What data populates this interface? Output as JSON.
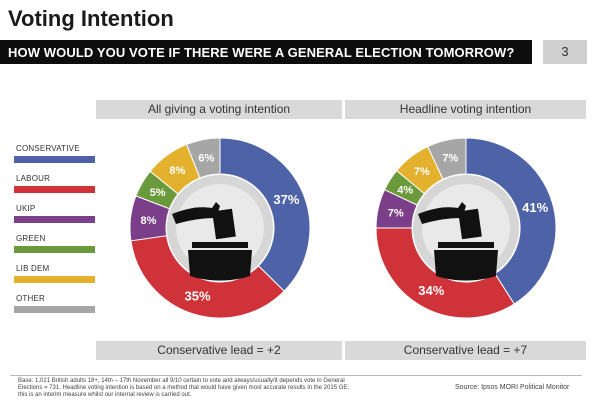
{
  "header": {
    "title": "Voting Intention",
    "question": "HOW WOULD YOU VOTE IF THERE WERE A GENERAL ELECTION TOMORROW?",
    "page_number": "3"
  },
  "legend": [
    {
      "label": "CONSERVATIVE",
      "color": "#4e62a8"
    },
    {
      "label": "LABOUR",
      "color": "#d03239"
    },
    {
      "label": "UKIP",
      "color": "#7b3f8a"
    },
    {
      "label": "GREEN",
      "color": "#6a9a3b"
    },
    {
      "label": "LIB DEM",
      "color": "#e3b12e"
    },
    {
      "label": "OTHER",
      "color": "#a6a6a6"
    }
  ],
  "panels": [
    {
      "header": "All giving a voting intention",
      "footer": "Conservative lead = +2"
    },
    {
      "header": "Headline voting intention",
      "footer": "Conservative lead = +7"
    }
  ],
  "footer": {
    "base_note": "Base: 1,021 British adults 18+, 14th – 17th November all 9/10 certain to vote and always/usually/it depends vote in General Elections = 731. Headline voting intention is based on a method that would have given most accurate results in the 2015 GE; this is an interim measure whilst our internal review is carried out.",
    "source": "Source: Ipsos MORI Political Monitor"
  },
  "chart_data": [
    {
      "type": "pie",
      "title": "All giving a voting intention",
      "categories": [
        "CONSERVATIVE",
        "LABOUR",
        "UKIP",
        "GREEN",
        "LIB DEM",
        "OTHER"
      ],
      "values": [
        37,
        35,
        8,
        5,
        8,
        6
      ],
      "labels": [
        "37%",
        "35%",
        "8%",
        "5%",
        "8%",
        "6%"
      ],
      "colors": [
        "#4e62a8",
        "#d03239",
        "#7b3f8a",
        "#6a9a3b",
        "#e3b12e",
        "#a6a6a6"
      ],
      "donut": true,
      "legend_position": "left"
    },
    {
      "type": "pie",
      "title": "Headline voting intention",
      "categories": [
        "CONSERVATIVE",
        "LABOUR",
        "UKIP",
        "GREEN",
        "LIB DEM",
        "OTHER"
      ],
      "values": [
        41,
        34,
        7,
        4,
        7,
        7
      ],
      "labels": [
        "41%",
        "34%",
        "7%",
        "4%",
        "7%",
        "7%"
      ],
      "colors": [
        "#4e62a8",
        "#d03239",
        "#7b3f8a",
        "#6a9a3b",
        "#e3b12e",
        "#a6a6a6"
      ],
      "donut": true,
      "legend_position": "left"
    }
  ]
}
